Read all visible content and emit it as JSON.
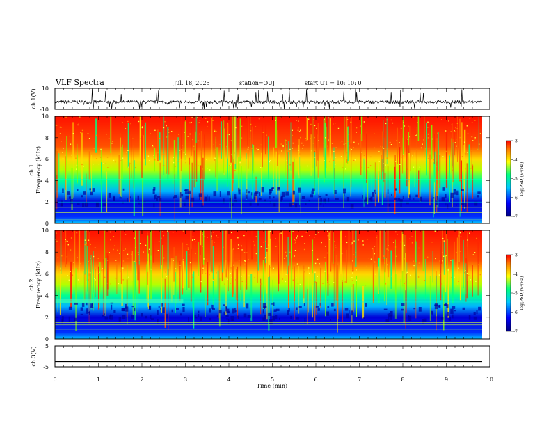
{
  "header": {
    "title": "VLF Spectra",
    "date": "Jul. 18, 2025",
    "station": "station=OUJ",
    "start": "start UT =  10: 10: 0"
  },
  "chart_data": [
    {
      "id": "ch1-waveform",
      "type": "line",
      "ylabel": "ch.1(V)",
      "ylim": [
        -10,
        10
      ],
      "yticks": [
        "10",
        "-10"
      ],
      "xlim": [
        0,
        10
      ],
      "series_color": "#000000"
    },
    {
      "id": "ch1-spectrogram",
      "type": "heatmap",
      "ylabel_line1": "ch.1",
      "ylabel_line2": "Frequency (kHz)",
      "ylim": [
        0,
        10
      ],
      "yticks": [
        "0",
        "2",
        "4",
        "6",
        "8",
        "10"
      ],
      "xlim": [
        0,
        10
      ],
      "colorbar": {
        "label": "log(PSD)(V²/Hz)",
        "range": [
          -7,
          -3
        ],
        "ticks": [
          "-3",
          "-4",
          "-5",
          "-6",
          "-7"
        ]
      }
    },
    {
      "id": "ch2-spectrogram",
      "type": "heatmap",
      "ylabel_line1": "ch.2",
      "ylabel_line2": "Frequency (kHz)",
      "ylim": [
        0,
        10
      ],
      "yticks": [
        "0",
        "2",
        "4",
        "6",
        "8",
        "10"
      ],
      "xlim": [
        0,
        10
      ],
      "colorbar": {
        "label": "log(PSD)(V²/Hz)",
        "range": [
          -7,
          -3
        ],
        "ticks": [
          "-3",
          "-4",
          "-5",
          "-6",
          "-7"
        ]
      }
    },
    {
      "id": "ch3-waveform",
      "type": "line",
      "ylabel": "ch.3(V)",
      "ylim": [
        -5,
        5
      ],
      "yticks": [
        "5",
        "-5"
      ],
      "xlim": [
        0,
        10
      ],
      "value": -2.5,
      "series_color": "#000000"
    }
  ],
  "xaxis": {
    "label": "Time (min)",
    "ticks": [
      "0",
      "1",
      "2",
      "3",
      "4",
      "5",
      "6",
      "7",
      "8",
      "9",
      "10"
    ]
  },
  "colorscale": [
    "#000080",
    "#0000ff",
    "#00c8ff",
    "#00ff80",
    "#ffff00",
    "#ff8000",
    "#ff0000"
  ]
}
